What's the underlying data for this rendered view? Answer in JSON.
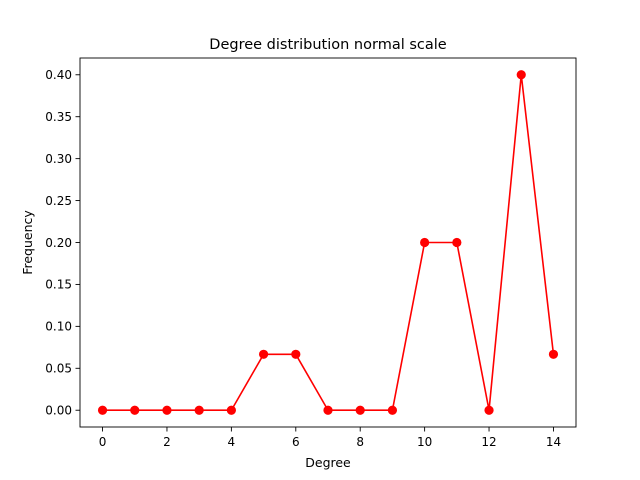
{
  "chart_data": {
    "type": "line",
    "title": "Degree distribution normal scale",
    "xlabel": "Degree",
    "ylabel": "Frequency",
    "xlim": [
      -0.7,
      14.7
    ],
    "ylim": [
      -0.02,
      0.42
    ],
    "xticks": [
      0,
      2,
      4,
      6,
      8,
      10,
      12,
      14
    ],
    "xtick_labels": [
      "0",
      "2",
      "4",
      "6",
      "8",
      "10",
      "12",
      "14"
    ],
    "yticks": [
      0.0,
      0.05,
      0.1,
      0.15,
      0.2,
      0.25,
      0.3,
      0.35,
      0.4
    ],
    "ytick_labels": [
      "0.00",
      "0.05",
      "0.10",
      "0.15",
      "0.20",
      "0.25",
      "0.30",
      "0.35",
      "0.40"
    ],
    "grid": false,
    "series": [
      {
        "color": "#ff0000",
        "marker": "circle",
        "x": [
          0,
          1,
          2,
          3,
          4,
          5,
          6,
          7,
          8,
          9,
          10,
          11,
          12,
          13,
          14
        ],
        "y": [
          0.0,
          0.0,
          0.0,
          0.0,
          0.0,
          0.0667,
          0.0667,
          0.0,
          0.0,
          0.0,
          0.2,
          0.2,
          0.0,
          0.4,
          0.0667
        ]
      }
    ]
  }
}
